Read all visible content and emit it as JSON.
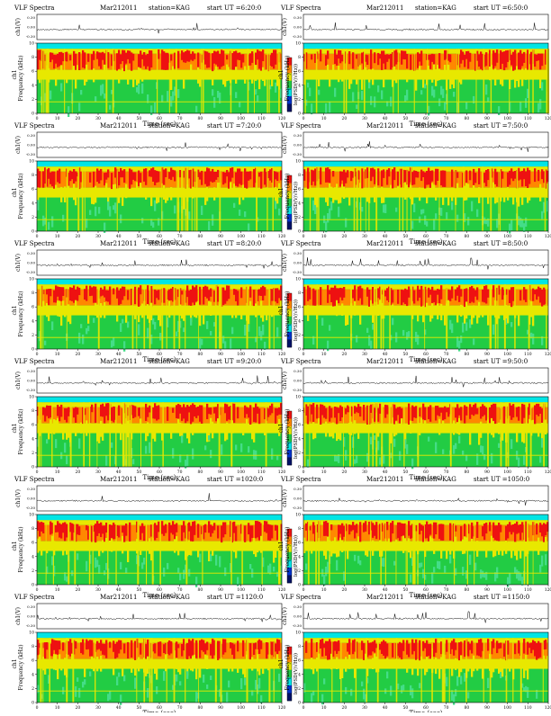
{
  "colors": {
    "cyan": "#00e5e5",
    "green_light": "#44dd88",
    "green": "#22cc44",
    "yellow": "#e8e800",
    "orange": "#ff8800",
    "red": "#ee1111",
    "blue": "#0033cc",
    "navy": "#001166",
    "trace": "#000000"
  },
  "chart_data": [
    {
      "type": "heatmap",
      "title_left": "VLF Spectra",
      "date": "Mar212011",
      "station": "station=KAG",
      "start": "start  UT  =6:20:0",
      "ch_label": "ch1(V)",
      "freq_label": "ch1\nFrequency  (kHz)",
      "cbar_label": "log(PSD(V/√Hz))",
      "xlabel": "Time  (sec)",
      "xticks": [
        "0",
        "10",
        "20",
        "30",
        "40",
        "50",
        "60",
        "70",
        "80",
        "90",
        "100",
        "110",
        "120"
      ],
      "yticks": [
        "0",
        "2",
        "4",
        "6",
        "8",
        "10"
      ],
      "chticks": [
        "0.30",
        "0.00",
        "-0.30"
      ],
      "xlim": [
        0,
        120
      ],
      "ylim": [
        0,
        10
      ]
    },
    {
      "type": "heatmap",
      "title_left": "VLF Spectra",
      "date": "Mar212011",
      "station": "station=KAG",
      "start": "start  UT  =6:50:0",
      "ch_label": "ch1(V)",
      "freq_label": "ch1\nFrequency  (kHz)",
      "cbar_label": "log(PSD(V/√Hz))",
      "xlabel": "Time  (sec)",
      "xticks": [
        "0",
        "10",
        "20",
        "30",
        "40",
        "50",
        "60",
        "70",
        "80",
        "90",
        "100",
        "110",
        "120"
      ],
      "yticks": [
        "0",
        "2",
        "4",
        "6",
        "8",
        "10"
      ],
      "chticks": [
        "0.30",
        "0.00",
        "-0.30"
      ],
      "xlim": [
        0,
        120
      ],
      "ylim": [
        0,
        10
      ]
    },
    {
      "type": "heatmap",
      "title_left": "VLF Spectra",
      "date": "Mar212011",
      "station": "station=KAG",
      "start": "start  UT  =7:20:0",
      "ch_label": "ch1(V)",
      "freq_label": "ch1\nFrequency  (kHz)",
      "cbar_label": "log(PSD(V/√Hz))",
      "xlabel": "Time  (sec)",
      "xticks": [
        "0",
        "10",
        "20",
        "30",
        "40",
        "50",
        "60",
        "70",
        "80",
        "90",
        "100",
        "110",
        "120"
      ],
      "yticks": [
        "0",
        "2",
        "4",
        "6",
        "8",
        "10"
      ],
      "chticks": [
        "0.30",
        "0.00",
        "-0.30"
      ],
      "xlim": [
        0,
        120
      ],
      "ylim": [
        0,
        10
      ]
    },
    {
      "type": "heatmap",
      "title_left": "VLF Spectra",
      "date": "Mar212011",
      "station": "station=KAG",
      "start": "start  UT  =7:50:0",
      "ch_label": "ch1(V)",
      "freq_label": "ch1\nFrequency  (kHz)",
      "cbar_label": "log(PSD(V/√Hz))",
      "xlabel": "Time  (sec)",
      "xticks": [
        "0",
        "10",
        "20",
        "30",
        "40",
        "50",
        "60",
        "70",
        "80",
        "90",
        "100",
        "110",
        "120"
      ],
      "yticks": [
        "0",
        "2",
        "4",
        "6",
        "8",
        "10"
      ],
      "chticks": [
        "0.30",
        "0.00",
        "-0.30"
      ],
      "xlim": [
        0,
        120
      ],
      "ylim": [
        0,
        10
      ]
    },
    {
      "type": "heatmap",
      "title_left": "VLF Spectra",
      "date": "Mar212011",
      "station": "station=KAG",
      "start": "start  UT  =8:20:0",
      "ch_label": "ch1(V)",
      "freq_label": "ch1\nFrequency  (kHz)",
      "cbar_label": "log(PSD(V/√Hz))",
      "xlabel": "Time  (sec)",
      "xticks": [
        "0",
        "10",
        "20",
        "30",
        "40",
        "50",
        "60",
        "70",
        "80",
        "90",
        "100",
        "110",
        "120"
      ],
      "yticks": [
        "0",
        "2",
        "4",
        "6",
        "8",
        "10"
      ],
      "chticks": [
        "0.30",
        "0.00",
        "-0.30"
      ],
      "xlim": [
        0,
        120
      ],
      "ylim": [
        0,
        10
      ]
    },
    {
      "type": "heatmap",
      "title_left": "VLF Spectra",
      "date": "Mar212011",
      "station": "station=KAG",
      "start": "start  UT  =8:50:0",
      "ch_label": "ch1(V)",
      "freq_label": "ch1\nFrequency  (kHz)",
      "cbar_label": "log(PSD(V/√Hz))",
      "xlabel": "Time  (sec)",
      "xticks": [
        "0",
        "10",
        "20",
        "30",
        "40",
        "50",
        "60",
        "70",
        "80",
        "90",
        "100",
        "110",
        "120"
      ],
      "yticks": [
        "0",
        "2",
        "4",
        "6",
        "8",
        "10"
      ],
      "chticks": [
        "0.30",
        "0.00",
        "-0.30"
      ],
      "xlim": [
        0,
        120
      ],
      "ylim": [
        0,
        10
      ]
    },
    {
      "type": "heatmap",
      "title_left": "VLF Spectra",
      "date": "Mar212011",
      "station": "station=KAG",
      "start": "start  UT  =9:20:0",
      "ch_label": "ch1(V)",
      "freq_label": "ch1\nFrequency  (kHz)",
      "cbar_label": "log(PSD(V/√Hz))",
      "xlabel": "Time  (sec)",
      "xticks": [
        "0",
        "10",
        "20",
        "30",
        "40",
        "50",
        "60",
        "70",
        "80",
        "90",
        "100",
        "110",
        "120"
      ],
      "yticks": [
        "0",
        "2",
        "4",
        "6",
        "8",
        "10"
      ],
      "chticks": [
        "0.30",
        "0.00",
        "-0.30"
      ],
      "xlim": [
        0,
        120
      ],
      "ylim": [
        0,
        10
      ]
    },
    {
      "type": "heatmap",
      "title_left": "VLF Spectra",
      "date": "Mar212011",
      "station": "station=KAG",
      "start": "start  UT  =9:50:0",
      "ch_label": "ch1(V)",
      "freq_label": "ch1\nFrequency  (kHz)",
      "cbar_label": "log(PSD(V/√Hz))",
      "xlabel": "Time  (sec)",
      "xticks": [
        "0",
        "10",
        "20",
        "30",
        "40",
        "50",
        "60",
        "70",
        "80",
        "90",
        "100",
        "110",
        "120"
      ],
      "yticks": [
        "0",
        "2",
        "4",
        "6",
        "8",
        "10"
      ],
      "chticks": [
        "0.30",
        "0.00",
        "-0.30"
      ],
      "xlim": [
        0,
        120
      ],
      "ylim": [
        0,
        10
      ]
    },
    {
      "type": "heatmap",
      "title_left": "VLF Spectra",
      "date": "Mar212011",
      "station": "station=KAG",
      "start": "start  UT  =1020:0",
      "ch_label": "ch1(V)",
      "freq_label": "ch1\nFrequency  (kHz)",
      "cbar_label": "log(PSD(V/√Hz))",
      "xlabel": "Time  (sec)",
      "xticks": [
        "0",
        "10",
        "20",
        "30",
        "40",
        "50",
        "60",
        "70",
        "80",
        "90",
        "100",
        "110",
        "120"
      ],
      "yticks": [
        "0",
        "2",
        "4",
        "6",
        "8",
        "10"
      ],
      "chticks": [
        "0.30",
        "0.00",
        "-0.30"
      ],
      "xlim": [
        0,
        120
      ],
      "ylim": [
        0,
        10
      ]
    },
    {
      "type": "heatmap",
      "title_left": "VLF Spectra",
      "date": "Mar212011",
      "station": "station=KAG",
      "start": "start  UT  =1050:0",
      "ch_label": "ch1(V)",
      "freq_label": "ch1\nFrequency  (kHz)",
      "cbar_label": "log(PSD(V/√Hz))",
      "xlabel": "Time  (sec)",
      "xticks": [
        "0",
        "10",
        "20",
        "30",
        "40",
        "50",
        "60",
        "70",
        "80",
        "90",
        "100",
        "110",
        "120"
      ],
      "yticks": [
        "0",
        "2",
        "4",
        "6",
        "8",
        "10"
      ],
      "chticks": [
        "0.30",
        "0.00",
        "-0.30"
      ],
      "xlim": [
        0,
        120
      ],
      "ylim": [
        0,
        10
      ]
    },
    {
      "type": "heatmap",
      "title_left": "VLF Spectra",
      "date": "Mar212011",
      "station": "station=KAG",
      "start": "start  UT  =1120:0",
      "ch_label": "ch1(V)",
      "freq_label": "ch1\nFrequency  (kHz)",
      "cbar_label": "log(PSD(V/√Hz))",
      "xlabel": "Time  (sec)",
      "xticks": [
        "0",
        "10",
        "20",
        "30",
        "40",
        "50",
        "60",
        "70",
        "80",
        "90",
        "100",
        "110",
        "120"
      ],
      "yticks": [
        "0",
        "2",
        "4",
        "6",
        "8",
        "10"
      ],
      "chticks": [
        "0.30",
        "0.00",
        "-0.30"
      ],
      "xlim": [
        0,
        120
      ],
      "ylim": [
        0,
        10
      ]
    },
    {
      "type": "heatmap",
      "title_left": "VLF Spectra",
      "date": "Mar212011",
      "station": "station=KAG",
      "start": "start  UT  =1150:0",
      "ch_label": "ch1(V)",
      "freq_label": "ch1\nFrequency  (kHz)",
      "cbar_label": "log(PSD(V/√Hz))",
      "xlabel": "Time  (sec)",
      "xticks": [
        "0",
        "10",
        "20",
        "30",
        "40",
        "50",
        "60",
        "70",
        "80",
        "90",
        "100",
        "110",
        "120"
      ],
      "yticks": [
        "0",
        "2",
        "4",
        "6",
        "8",
        "10"
      ],
      "chticks": [
        "0.30",
        "0.00",
        "-0.30"
      ],
      "xlim": [
        0,
        120
      ],
      "ylim": [
        0,
        10
      ]
    }
  ]
}
